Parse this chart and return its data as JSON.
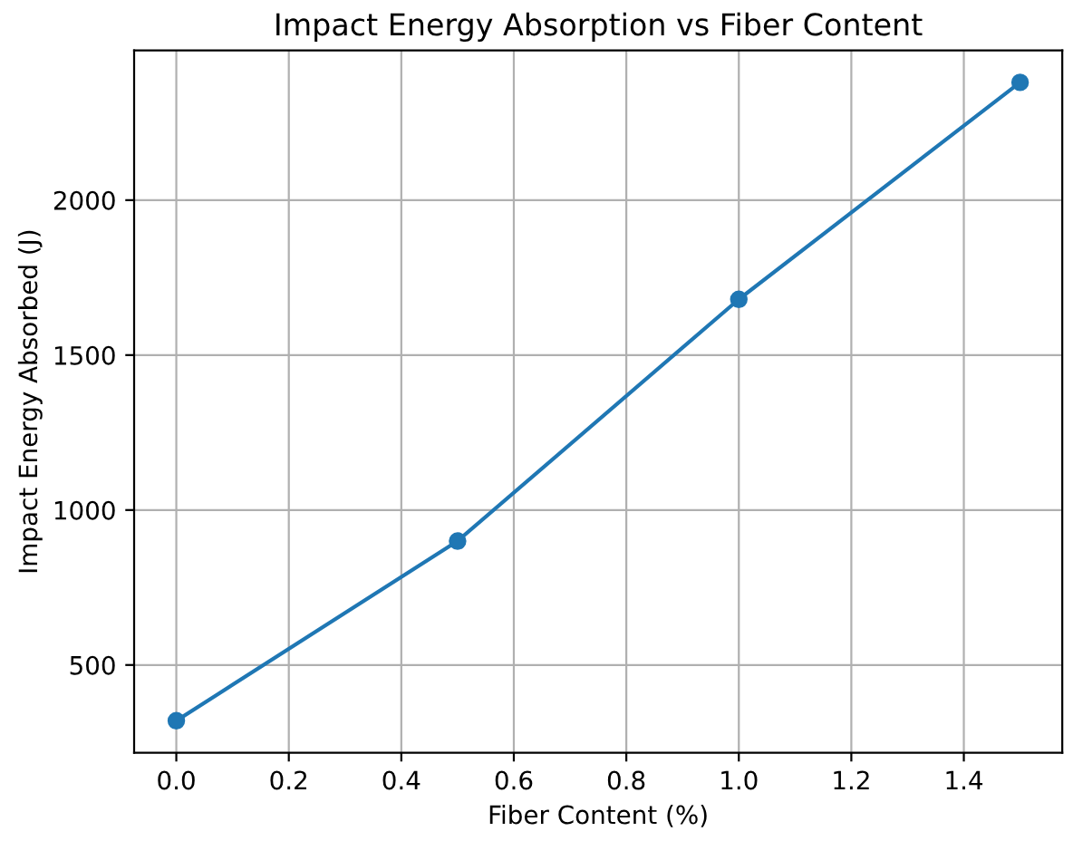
{
  "chart_data": {
    "type": "line",
    "title": "Impact Energy Absorption vs Fiber Content",
    "xlabel": "Fiber Content (%)",
    "ylabel": "Impact Energy Absorbed (J)",
    "x": [
      0.0,
      0.5,
      1.0,
      1.5
    ],
    "series": [
      {
        "color": "#1f77b4",
        "values": [
          320,
          900,
          1680,
          2380
        ]
      }
    ],
    "marker": "circle",
    "line_style": "solid",
    "grid": true,
    "xlim": [
      -0.075,
      1.575
    ],
    "ylim": [
      217,
      2483
    ],
    "xticks": [
      {
        "value": 0.0,
        "label": "0.0"
      },
      {
        "value": 0.2,
        "label": "0.2"
      },
      {
        "value": 0.4,
        "label": "0.4"
      },
      {
        "value": 0.6,
        "label": "0.6"
      },
      {
        "value": 0.8,
        "label": "0.8"
      },
      {
        "value": 1.0,
        "label": "1.0"
      },
      {
        "value": 1.2,
        "label": "1.2"
      },
      {
        "value": 1.4,
        "label": "1.4"
      }
    ],
    "yticks": [
      500,
      1000,
      1500,
      2000
    ]
  }
}
